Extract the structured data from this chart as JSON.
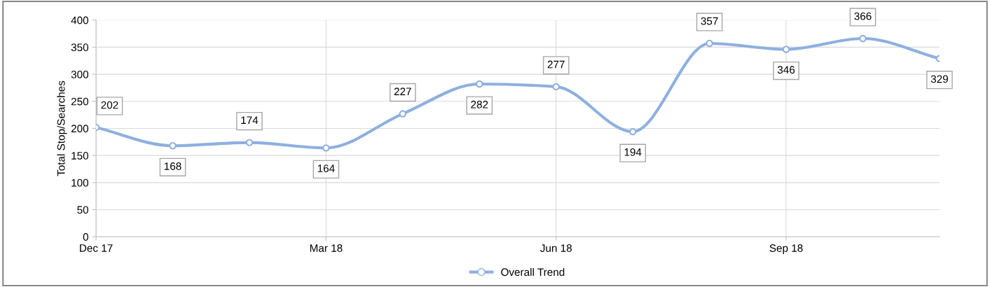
{
  "chart_data": {
    "type": "line",
    "ylabel": "Total Stop/Searches",
    "categories": [
      "Dec 17",
      null,
      null,
      "Mar 18",
      null,
      null,
      "Jun 18",
      null,
      null,
      "Sep 18",
      null,
      null
    ],
    "series": [
      {
        "name": "Overall Trend",
        "color": "#8eb0e0",
        "values": [
          202,
          168,
          174,
          164,
          227,
          282,
          277,
          194,
          357,
          346,
          366,
          329
        ]
      }
    ],
    "ylim": [
      0,
      400
    ],
    "yticks": [
      0,
      50,
      100,
      150,
      200,
      250,
      300,
      350,
      400
    ],
    "grid": true,
    "legend": "bottom",
    "marker": "circle",
    "line_style": "solid",
    "data_labels": true
  }
}
